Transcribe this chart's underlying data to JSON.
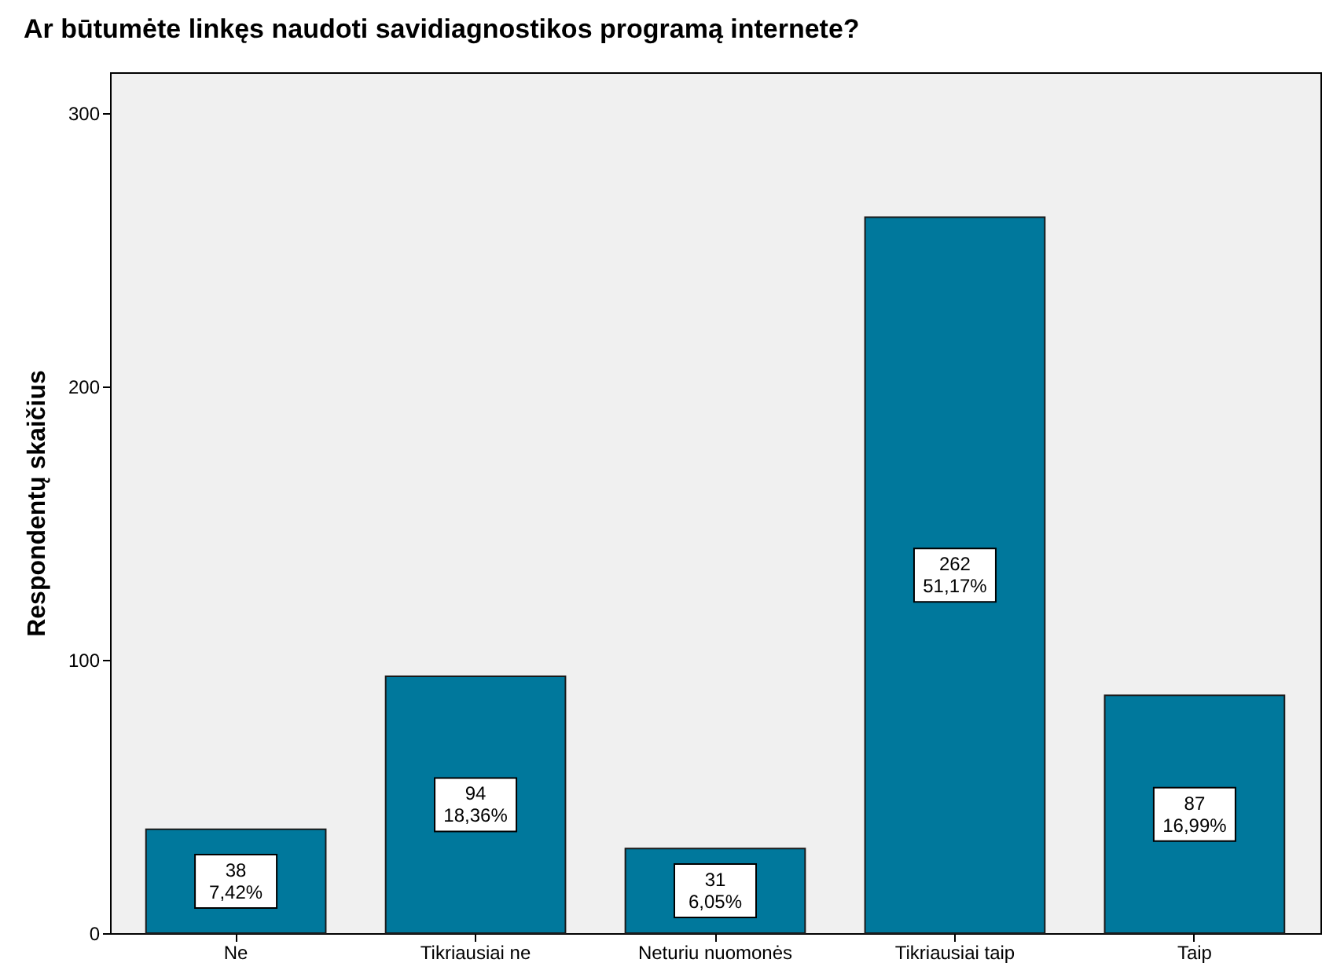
{
  "chart_data": {
    "type": "bar",
    "title": "Ar būtumėte linkęs naudoti savidiagnostikos programą internete?",
    "ylabel": "Respondentų skaičius",
    "categories": [
      "Ne",
      "Tikriausiai ne",
      "Neturiu nuomonės",
      "Tikriausiai taip",
      "Taip"
    ],
    "values": [
      38,
      94,
      31,
      262,
      87
    ],
    "color": "#00789c",
    "value_labels": [
      "38\n7,42%",
      "94\n18,36%",
      "31\n6,05%",
      "262\n51,17%",
      "87\n16,99%"
    ],
    "ylim": [
      0,
      315
    ],
    "yticks": [
      0,
      100,
      200,
      300
    ],
    "grid": false
  }
}
